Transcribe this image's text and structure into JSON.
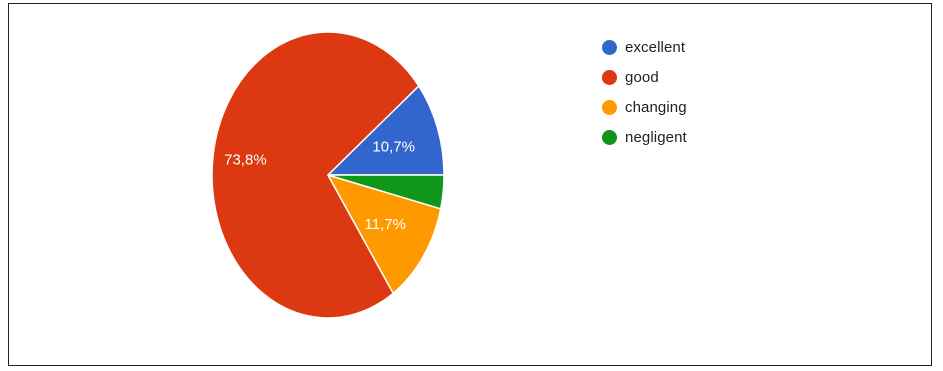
{
  "chart_data": {
    "type": "pie",
    "slices": [
      {
        "name": "excellent",
        "value": 10.7,
        "label": "10,7%",
        "color": "#3366cc"
      },
      {
        "name": "good",
        "value": 73.8,
        "label": "73,8%",
        "color": "#dc3912"
      },
      {
        "name": "changing",
        "value": 11.7,
        "label": "11,7%",
        "color": "#ff9900"
      },
      {
        "name": "negligent",
        "value": 3.8,
        "label": "",
        "color": "#109618"
      }
    ],
    "legend_position": "right"
  }
}
